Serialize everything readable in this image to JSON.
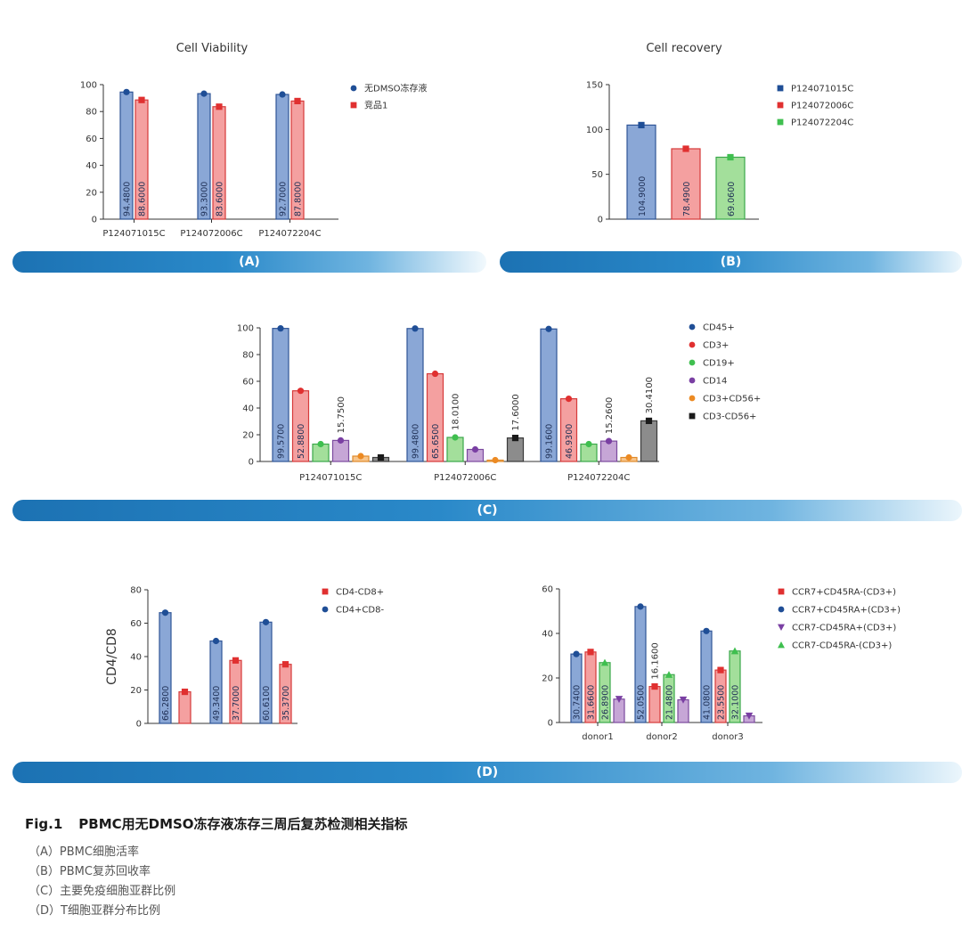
{
  "chart_data": [
    {
      "id": "A",
      "type": "bar",
      "title": "Cell Viability",
      "categories": [
        "P124071015C",
        "P124072006C",
        "P124072204C"
      ],
      "ylim": [
        0,
        100
      ],
      "yticks": [
        0,
        20,
        40,
        60,
        80,
        100
      ],
      "series": [
        {
          "name": "无DMSO冻存液",
          "values": [
            94.48,
            93.3,
            92.7
          ],
          "labels": [
            "94.4800",
            "93.3000",
            "92.7000"
          ],
          "color": "#8aa7d6",
          "stroke": "#2f5597",
          "marker": "circle",
          "markerColor": "#1f4e96"
        },
        {
          "name": "竞品1",
          "values": [
            88.6,
            83.6,
            87.8
          ],
          "labels": [
            "88.6000",
            "83.6000",
            "87.8000"
          ],
          "color": "#f4a0a0",
          "stroke": "#d63a3a",
          "marker": "square",
          "markerColor": "#e03030"
        }
      ],
      "legend": "right"
    },
    {
      "id": "B",
      "type": "bar",
      "title": "Cell recovery",
      "categories": [
        "P124071015C",
        "P124072006C",
        "P124072204C"
      ],
      "ylim": [
        0,
        150
      ],
      "yticks": [
        0,
        50,
        100,
        150
      ],
      "bars": [
        {
          "name": "P124071015C",
          "value": 104.9,
          "label": "104.9000",
          "color": "#8aa7d6",
          "stroke": "#2f5597",
          "marker": "square",
          "markerColor": "#1f4e96"
        },
        {
          "name": "P124072006C",
          "value": 78.49,
          "label": "78.4900",
          "color": "#f4a0a0",
          "stroke": "#d63a3a",
          "marker": "square",
          "markerColor": "#e03030"
        },
        {
          "name": "P124072204C",
          "value": 69.06,
          "label": "69.0600",
          "color": "#a3df9b",
          "stroke": "#3aa84a",
          "marker": "square",
          "markerColor": "#3fbf4f"
        }
      ],
      "legend": "right"
    },
    {
      "id": "C",
      "type": "bar",
      "title": "",
      "categories": [
        "P124071015C",
        "P124072006C",
        "P124072204C"
      ],
      "ylim": [
        0,
        100
      ],
      "yticks": [
        0,
        20,
        40,
        60,
        80,
        100
      ],
      "series": [
        {
          "name": "CD45+",
          "values": [
            99.57,
            99.48,
            99.16
          ],
          "labels": [
            "99.5700",
            "99.4800",
            "99.1600"
          ],
          "color": "#8aa7d6",
          "stroke": "#2f5597",
          "marker": "circle",
          "markerColor": "#1f4e96"
        },
        {
          "name": "CD3+",
          "values": [
            52.88,
            65.65,
            46.93
          ],
          "labels": [
            "52.8800",
            "65.6500",
            "46.9300"
          ],
          "color": "#f4a0a0",
          "stroke": "#d63a3a",
          "marker": "circle",
          "markerColor": "#e03030"
        },
        {
          "name": "CD19+",
          "values": [
            13.0,
            18.01,
            13.0
          ],
          "labels": [
            "",
            "18.0100",
            ""
          ],
          "color": "#a3df9b",
          "stroke": "#3aa84a",
          "marker": "circle",
          "markerColor": "#3fbf4f"
        },
        {
          "name": "CD14",
          "values": [
            15.75,
            9.0,
            15.26
          ],
          "labels": [
            "15.7500",
            "",
            "15.2600"
          ],
          "color": "#c6a6d6",
          "stroke": "#7b4a9e",
          "marker": "circle",
          "markerColor": "#7a3fa3"
        },
        {
          "name": "CD3+CD56+",
          "values": [
            4.0,
            1.0,
            3.0
          ],
          "labels": [
            "",
            "",
            ""
          ],
          "color": "#f7c58c",
          "stroke": "#e08a2a",
          "marker": "circle",
          "markerColor": "#ec8a23"
        },
        {
          "name": "CD3-CD56+",
          "values": [
            3.0,
            17.6,
            30.41
          ],
          "labels": [
            "",
            "17.6000",
            "30.4100"
          ],
          "color": "#8c8c8c",
          "stroke": "#3a3a3a",
          "marker": "square",
          "markerColor": "#1a1a1a"
        }
      ],
      "legend": "right"
    },
    {
      "id": "D1",
      "type": "bar",
      "title": "",
      "ylabel": "CD4/CD8",
      "categories": [
        "",
        "",
        ""
      ],
      "ylim": [
        0,
        80
      ],
      "yticks": [
        0,
        20,
        40,
        60,
        80
      ],
      "series": [
        {
          "name": "CD4+CD8-",
          "values": [
            66.28,
            49.34,
            60.61
          ],
          "labels": [
            "66.2800",
            "49.3400",
            "60.6100"
          ],
          "color": "#8aa7d6",
          "stroke": "#2f5597",
          "marker": "circle",
          "markerColor": "#1f4e96"
        },
        {
          "name": "CD4-CD8+",
          "values": [
            18.9,
            37.7,
            35.37
          ],
          "labels": [
            "",
            "37.7000",
            "35.3700"
          ],
          "color": "#f4a0a0",
          "stroke": "#d63a3a",
          "marker": "square",
          "markerColor": "#e03030"
        }
      ],
      "legendOrder": [
        "CD4-CD8+",
        "CD4+CD8-"
      ],
      "legend": "right"
    },
    {
      "id": "D2",
      "type": "bar",
      "title": "",
      "categories": [
        "donor1",
        "donor2",
        "donor3"
      ],
      "ylim": [
        0,
        60
      ],
      "yticks": [
        0,
        20,
        40,
        60
      ],
      "series": [
        {
          "name": "CCR7+CD45RA+(CD3+)",
          "values": [
            30.74,
            52.05,
            41.08
          ],
          "labels": [
            "30.7400",
            "52.0500",
            "41.0800"
          ],
          "color": "#8aa7d6",
          "stroke": "#2f5597",
          "marker": "circle",
          "markerColor": "#1f4e96"
        },
        {
          "name": "CCR7+CD45RA-(CD3+)",
          "values": [
            31.66,
            16.16,
            23.55
          ],
          "labels": [
            "31.6600",
            "16.1600",
            "23.5500"
          ],
          "color": "#f4a0a0",
          "stroke": "#d63a3a",
          "marker": "square",
          "markerColor": "#e03030"
        },
        {
          "name": "CCR7-CD45RA-(CD3+)",
          "values": [
            26.89,
            21.48,
            32.1
          ],
          "labels": [
            "26.8900",
            "21.4800",
            "32.1000"
          ],
          "color": "#a3df9b",
          "stroke": "#3aa84a",
          "marker": "triangle-up",
          "markerColor": "#3fbf4f"
        },
        {
          "name": "CCR7-CD45RA+(CD3+)",
          "values": [
            10.5,
            10.2,
            3.0
          ],
          "labels": [
            "",
            "",
            ""
          ],
          "color": "#c6a6d6",
          "stroke": "#7b4a9e",
          "marker": "triangle-down",
          "markerColor": "#7a3fa3"
        }
      ],
      "legendOrder": [
        "CCR7+CD45RA-(CD3+)",
        "CCR7+CD45RA+(CD3+)",
        "CCR7-CD45RA+(CD3+)",
        "CCR7-CD45RA-(CD3+)"
      ],
      "legend": "right"
    }
  ],
  "bands": {
    "a": "(A)",
    "b": "(B)",
    "c": "(C)",
    "d": "(D)"
  },
  "caption": {
    "fig_no": "Fig.1",
    "title": "PBMC用无DMSO冻存液冻存三周后复苏检测相关指标",
    "items": [
      "（A）PBMC细胞活率",
      "（B）PBMC复苏回收率",
      "（C）主要免疫细胞亚群比例",
      "（D）T细胞亚群分布比例"
    ]
  }
}
